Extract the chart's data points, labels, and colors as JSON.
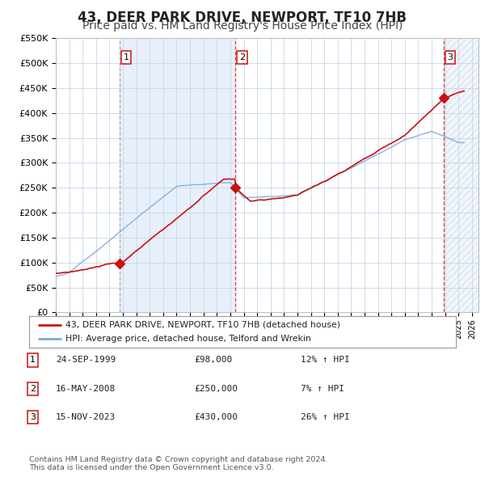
{
  "title": "43, DEER PARK DRIVE, NEWPORT, TF10 7HB",
  "subtitle": "Price paid vs. HM Land Registry's House Price Index (HPI)",
  "title_fontsize": 12,
  "subtitle_fontsize": 10,
  "background_color": "#ffffff",
  "plot_bg_color": "#ffffff",
  "grid_color": "#c8d4e8",
  "hpi_line_color": "#7aaadd",
  "price_line_color": "#cc1111",
  "shade_color": "#ddeaf8",
  "ylim": [
    0,
    550000
  ],
  "yticks": [
    0,
    50000,
    100000,
    150000,
    200000,
    250000,
    300000,
    350000,
    400000,
    450000,
    500000,
    550000
  ],
  "ytick_labels": [
    "£0",
    "£50K",
    "£100K",
    "£150K",
    "£200K",
    "£250K",
    "£300K",
    "£350K",
    "£400K",
    "£450K",
    "£500K",
    "£550K"
  ],
  "xmin_year": 1995,
  "xmax_year": 2026.5,
  "xtick_years": [
    1995,
    1996,
    1997,
    1998,
    1999,
    2000,
    2001,
    2002,
    2003,
    2004,
    2005,
    2006,
    2007,
    2008,
    2009,
    2010,
    2011,
    2012,
    2013,
    2014,
    2015,
    2016,
    2017,
    2018,
    2019,
    2020,
    2021,
    2022,
    2023,
    2024,
    2025,
    2026
  ],
  "sales": [
    {
      "date_year": 1999.73,
      "price": 98000,
      "label": "1"
    },
    {
      "date_year": 2008.37,
      "price": 250000,
      "label": "2"
    },
    {
      "date_year": 2023.88,
      "price": 430000,
      "label": "3"
    }
  ],
  "vline_sale1_color": "#aaaaaa",
  "vline_sale2_color": "#cc1111",
  "vline_sale3_color": "#cc1111",
  "legend_entries": [
    "43, DEER PARK DRIVE, NEWPORT, TF10 7HB (detached house)",
    "HPI: Average price, detached house, Telford and Wrekin"
  ],
  "table_rows": [
    {
      "num": "1",
      "date": "24-SEP-1999",
      "price": "£98,000",
      "hpi": "12% ↑ HPI"
    },
    {
      "num": "2",
      "date": "16-MAY-2008",
      "price": "£250,000",
      "hpi": "7% ↑ HPI"
    },
    {
      "num": "3",
      "date": "15-NOV-2023",
      "price": "£430,000",
      "hpi": "26% ↑ HPI"
    }
  ],
  "footnote": "Contains HM Land Registry data © Crown copyright and database right 2024.\nThis data is licensed under the Open Government Licence v3.0."
}
